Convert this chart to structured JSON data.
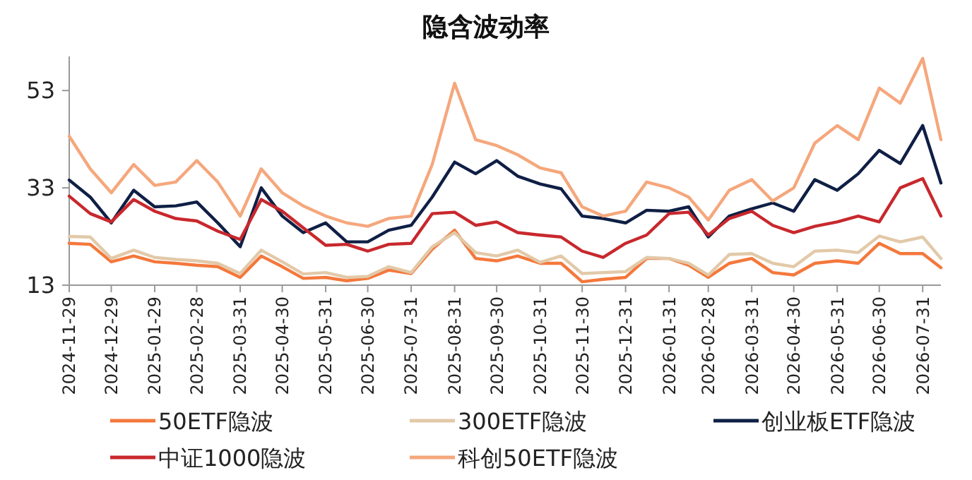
{
  "chart_data": {
    "type": "line",
    "title": "隐含波动率",
    "x": [
      "2024-11-29",
      "2024-12-14",
      "2024-12-29",
      "2025-01-14",
      "2025-01-29",
      "2025-02-13",
      "2025-02-28",
      "2025-03-15",
      "2025-03-31",
      "2025-04-15",
      "2025-04-30",
      "2025-05-15",
      "2025-05-31",
      "2025-06-15",
      "2025-06-30",
      "2025-07-15",
      "2025-07-31",
      "2025-08-15",
      "2025-08-31",
      "2025-09-15",
      "2025-09-30",
      "2025-10-15",
      "2025-10-31",
      "2025-11-15",
      "2025-11-30",
      "2025-12-15",
      "2025-12-31",
      "2026-01-15",
      "2026-01-31",
      "2026-02-14",
      "2026-02-28",
      "2026-03-15",
      "2026-03-31",
      "2026-04-15",
      "2026-04-30",
      "2026-05-15",
      "2026-05-31",
      "2026-06-15",
      "2026-06-30",
      "2026-07-15",
      "2026-07-31",
      "2026-08-13"
    ],
    "series": [
      {
        "name": "50ETF隐波",
        "color": "#f4783c",
        "values": [
          21.6,
          21.4,
          17.8,
          19.0,
          17.8,
          17.5,
          17.1,
          16.8,
          14.6,
          19.0,
          16.8,
          14.4,
          14.6,
          13.9,
          14.4,
          16.1,
          15.4,
          20.4,
          24.3,
          18.5,
          18.0,
          19.0,
          17.5,
          17.5,
          13.7,
          14.2,
          14.6,
          18.5,
          18.5,
          17.1,
          14.6,
          17.5,
          18.5,
          15.6,
          15.1,
          17.5,
          18.0,
          17.5,
          21.6,
          19.5,
          19.5,
          16.6
        ]
      },
      {
        "name": "300ETF隐波",
        "color": "#e2c9a8",
        "values": [
          23.0,
          22.9,
          18.5,
          20.2,
          18.7,
          18.3,
          18.0,
          17.5,
          15.4,
          20.2,
          17.8,
          15.3,
          15.6,
          14.6,
          14.8,
          16.8,
          15.6,
          20.9,
          23.8,
          19.7,
          19.0,
          20.2,
          17.7,
          19.0,
          15.4,
          15.6,
          15.8,
          18.7,
          18.5,
          17.5,
          15.1,
          19.3,
          19.5,
          17.5,
          16.8,
          20.0,
          20.2,
          19.7,
          23.1,
          21.9,
          22.9,
          18.5
        ]
      },
      {
        "name": "创业板ETF隐波",
        "color": "#0f1f45",
        "values": [
          34.6,
          31.1,
          25.8,
          32.5,
          29.1,
          29.3,
          30.1,
          25.8,
          20.9,
          33.0,
          27.2,
          23.8,
          25.8,
          21.9,
          21.9,
          24.3,
          25.3,
          31.1,
          38.3,
          35.9,
          38.6,
          35.4,
          33.8,
          32.8,
          27.2,
          26.7,
          25.8,
          28.4,
          28.2,
          29.1,
          22.9,
          27.2,
          28.7,
          29.9,
          28.2,
          34.7,
          32.5,
          35.9,
          40.7,
          38.0,
          45.8,
          34.0
        ]
      },
      {
        "name": "中证1000隐波",
        "color": "#c8282d",
        "values": [
          31.3,
          27.7,
          26.0,
          30.6,
          28.2,
          26.7,
          26.2,
          24.1,
          22.4,
          30.6,
          28.2,
          24.8,
          21.2,
          21.4,
          20.0,
          21.4,
          21.6,
          27.7,
          28.0,
          25.3,
          26.0,
          23.8,
          23.3,
          22.9,
          20.0,
          18.7,
          21.6,
          23.3,
          27.7,
          28.0,
          23.3,
          26.7,
          28.2,
          25.3,
          23.8,
          25.1,
          26.0,
          27.2,
          26.0,
          33.0,
          34.9,
          27.2
        ]
      },
      {
        "name": "科创50ETF隐波",
        "color": "#f5a77c",
        "values": [
          43.6,
          36.9,
          32.0,
          37.8,
          33.5,
          34.2,
          38.6,
          34.2,
          27.2,
          36.9,
          32.0,
          29.3,
          27.2,
          25.8,
          25.1,
          26.7,
          27.2,
          37.8,
          54.5,
          42.9,
          41.7,
          39.8,
          37.1,
          36.1,
          29.1,
          27.2,
          28.2,
          34.2,
          33.0,
          31.1,
          26.4,
          32.5,
          34.7,
          30.3,
          33.0,
          42.2,
          45.8,
          42.9,
          53.5,
          50.4,
          59.6,
          42.9
        ]
      }
    ],
    "xlim": [
      "2024-11-29",
      "2026-08-13"
    ],
    "xticks": [
      "2024-11-29",
      "2024-12-29",
      "2025-01-29",
      "2025-02-28",
      "2025-03-31",
      "2025-04-30",
      "2025-05-31",
      "2025-06-30",
      "2025-07-31",
      "2025-08-31",
      "2025-09-30",
      "2025-10-31",
      "2025-11-30",
      "2025-12-31",
      "2026-01-31",
      "2026-02-28",
      "2026-03-31",
      "2026-04-30",
      "2026-05-31",
      "2026-06-30",
      "2026-07-31"
    ],
    "ylim": [
      13,
      60
    ],
    "yticks": [
      13,
      33,
      53
    ],
    "legend": "bottom",
    "grid": false,
    "marker": "none",
    "line_style": "solid"
  }
}
